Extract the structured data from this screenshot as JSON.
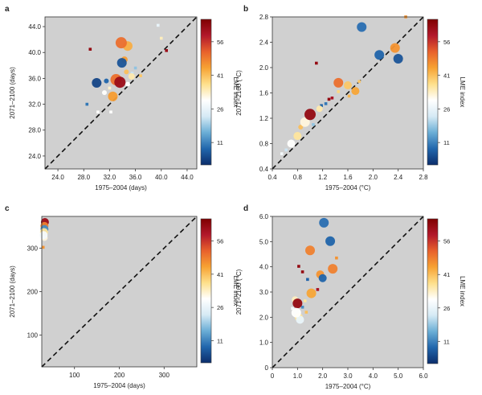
{
  "colorbar": {
    "label": "LME index",
    "ticks": [
      11,
      26,
      41,
      56
    ],
    "range": [
      1,
      66
    ],
    "colors": [
      "#0b2d6b",
      "#2166ac",
      "#6baed6",
      "#d6eaf5",
      "#ffffff",
      "#fee08b",
      "#f7a233",
      "#e8612c",
      "#b2182b",
      "#7f0000"
    ]
  },
  "chart_data": [
    {
      "type": "scatter",
      "panel": "a",
      "xlabel": "1975–2004 (days)",
      "ylabel": "2071–2100 (days)",
      "xlim": [
        22,
        45.5
      ],
      "ylim": [
        22,
        45.5
      ],
      "xticks": [
        "24.0",
        "28.0",
        "32.0",
        "36.0",
        "40.0",
        "44.0"
      ],
      "yticks": [
        "24.0",
        "28.0",
        "32.0",
        "36.0",
        "40.0",
        "44.0"
      ],
      "diagonal": true,
      "points": [
        {
          "x": 30.0,
          "y": 35.3,
          "lme": 4,
          "size": 6
        },
        {
          "x": 31.5,
          "y": 35.6,
          "lme": 8,
          "size": 3
        },
        {
          "x": 32.5,
          "y": 33.2,
          "lme": 45,
          "size": 6
        },
        {
          "x": 33.0,
          "y": 35.8,
          "lme": 50,
          "size": 7
        },
        {
          "x": 33.6,
          "y": 35.4,
          "lme": 62,
          "size": 7
        },
        {
          "x": 33.2,
          "y": 35.9,
          "lme": 40,
          "size": 5
        },
        {
          "x": 33.8,
          "y": 41.5,
          "lme": 50,
          "size": 7
        },
        {
          "x": 34.8,
          "y": 41.0,
          "lme": 43,
          "size": 6
        },
        {
          "x": 33.9,
          "y": 38.4,
          "lme": 6,
          "size": 6
        },
        {
          "x": 34.3,
          "y": 38.9,
          "lme": 45,
          "size": 4
        },
        {
          "x": 34.6,
          "y": 37.0,
          "lme": 41,
          "size": 3
        },
        {
          "x": 35.4,
          "y": 36.3,
          "lme": 35,
          "size": 4
        },
        {
          "x": 34.8,
          "y": 35.1,
          "lme": 30,
          "size": 3
        },
        {
          "x": 31.2,
          "y": 33.8,
          "lme": 30,
          "size": 3
        },
        {
          "x": 30.5,
          "y": 35.6,
          "lme": 28,
          "size": 2
        },
        {
          "x": 32.0,
          "y": 34.5,
          "lme": 33,
          "size": 2
        },
        {
          "x": 32.2,
          "y": 30.8,
          "lme": 30,
          "size": 2
        },
        {
          "x": 30.2,
          "y": 30.8,
          "lme": 30,
          "size": 2
        },
        {
          "x": 29.0,
          "y": 40.5,
          "lme": 63,
          "size": 2
        },
        {
          "x": 28.5,
          "y": 32.0,
          "lme": 10,
          "size": 2
        },
        {
          "x": 36.0,
          "y": 37.6,
          "lme": 18,
          "size": 2
        },
        {
          "x": 36.8,
          "y": 36.4,
          "lme": 40,
          "size": 2
        },
        {
          "x": 35.5,
          "y": 36.8,
          "lme": 22,
          "size": 2
        },
        {
          "x": 40.8,
          "y": 40.3,
          "lme": 62,
          "size": 2
        },
        {
          "x": 39.5,
          "y": 44.2,
          "lme": 26,
          "size": 2
        },
        {
          "x": 40.0,
          "y": 42.2,
          "lme": 34,
          "size": 2
        }
      ]
    },
    {
      "type": "scatter",
      "panel": "b",
      "xlabel": "1975–2004 (°C)",
      "ylabel": "2071–2100 (°C)",
      "xlim": [
        0.4,
        2.8
      ],
      "ylim": [
        0.4,
        2.8
      ],
      "xticks": [
        "0.4",
        "0.8",
        "1.2",
        "1.6",
        "2.0",
        "2.4",
        "2.8"
      ],
      "yticks": [
        "0.4",
        "0.8",
        "1.2",
        "1.6",
        "2.0",
        "2.4",
        "2.8"
      ],
      "diagonal": true,
      "points": [
        {
          "x": 1.82,
          "y": 2.64,
          "lme": 9,
          "size": 6
        },
        {
          "x": 2.1,
          "y": 2.2,
          "lme": 8,
          "size": 6
        },
        {
          "x": 2.4,
          "y": 2.14,
          "lme": 6,
          "size": 6
        },
        {
          "x": 2.35,
          "y": 2.31,
          "lme": 46,
          "size": 6
        },
        {
          "x": 2.52,
          "y": 2.8,
          "lme": 46,
          "size": 2
        },
        {
          "x": 1.45,
          "y": 1.76,
          "lme": 50,
          "size": 6
        },
        {
          "x": 1.6,
          "y": 1.72,
          "lme": 40,
          "size": 5
        },
        {
          "x": 1.72,
          "y": 1.63,
          "lme": 44,
          "size": 5
        },
        {
          "x": 1.78,
          "y": 1.78,
          "lme": 40,
          "size": 2
        },
        {
          "x": 1.1,
          "y": 2.07,
          "lme": 63,
          "size": 2
        },
        {
          "x": 1.0,
          "y": 1.26,
          "lme": 63,
          "size": 7
        },
        {
          "x": 0.92,
          "y": 1.14,
          "lme": 32,
          "size": 6
        },
        {
          "x": 0.8,
          "y": 0.92,
          "lme": 36,
          "size": 5
        },
        {
          "x": 0.7,
          "y": 0.8,
          "lme": 30,
          "size": 5
        },
        {
          "x": 1.15,
          "y": 1.35,
          "lme": 35,
          "size": 4
        },
        {
          "x": 1.25,
          "y": 1.43,
          "lme": 10,
          "size": 2
        },
        {
          "x": 1.3,
          "y": 1.5,
          "lme": 63,
          "size": 2
        },
        {
          "x": 1.18,
          "y": 1.4,
          "lme": 8,
          "size": 2
        },
        {
          "x": 1.35,
          "y": 1.52,
          "lme": 60,
          "size": 2
        },
        {
          "x": 1.05,
          "y": 1.1,
          "lme": 18,
          "size": 2
        },
        {
          "x": 0.62,
          "y": 0.7,
          "lme": 22,
          "size": 2
        },
        {
          "x": 0.55,
          "y": 0.64,
          "lme": 28,
          "size": 2
        },
        {
          "x": 0.85,
          "y": 1.06,
          "lme": 41,
          "size": 3
        },
        {
          "x": 1.45,
          "y": 1.62,
          "lme": 38,
          "size": 2
        },
        {
          "x": 1.62,
          "y": 1.55,
          "lme": 42,
          "size": 2
        }
      ]
    },
    {
      "type": "scatter",
      "panel": "c",
      "xlabel": "1975–2004 (days)",
      "ylabel": "2071–2100 (days)",
      "xlim": [
        27,
        373
      ],
      "ylim": [
        27,
        373
      ],
      "xticks": [
        "100",
        "200",
        "300"
      ],
      "yticks": [
        "100",
        "200",
        "300"
      ],
      "diagonal": true,
      "points": [
        {
          "x": 34,
          "y": 360,
          "lme": 62,
          "size": 5
        },
        {
          "x": 33,
          "y": 351,
          "lme": 48,
          "size": 5
        },
        {
          "x": 33,
          "y": 344,
          "lme": 12,
          "size": 5
        },
        {
          "x": 32,
          "y": 337,
          "lme": 36,
          "size": 5
        },
        {
          "x": 31,
          "y": 330,
          "lme": 28,
          "size": 5
        },
        {
          "x": 33,
          "y": 324,
          "lme": 32,
          "size": 4
        },
        {
          "x": 30,
          "y": 302,
          "lme": 46,
          "size": 2
        }
      ]
    },
    {
      "type": "scatter",
      "panel": "d",
      "xlabel": "1975–2004 (°C)",
      "ylabel": "2071–2100 (°C)",
      "xlim": [
        0,
        6
      ],
      "ylim": [
        0,
        6
      ],
      "xticks": [
        "0",
        "1.0",
        "2.0",
        "3.0",
        "4.0",
        "5.0",
        "6.0"
      ],
      "yticks": [
        "0",
        "1.0",
        "2.0",
        "3.0",
        "4.0",
        "5.0",
        "6.0"
      ],
      "diagonal": true,
      "points": [
        {
          "x": 2.05,
          "y": 5.75,
          "lme": 9,
          "size": 6
        },
        {
          "x": 2.3,
          "y": 5.02,
          "lme": 8,
          "size": 6
        },
        {
          "x": 1.5,
          "y": 4.65,
          "lme": 48,
          "size": 6
        },
        {
          "x": 2.4,
          "y": 3.92,
          "lme": 48,
          "size": 6
        },
        {
          "x": 1.9,
          "y": 3.7,
          "lme": 46,
          "size": 5
        },
        {
          "x": 2.0,
          "y": 3.55,
          "lme": 8,
          "size": 5
        },
        {
          "x": 1.55,
          "y": 2.95,
          "lme": 44,
          "size": 6
        },
        {
          "x": 1.0,
          "y": 2.55,
          "lme": 63,
          "size": 6
        },
        {
          "x": 0.95,
          "y": 2.18,
          "lme": 30,
          "size": 6
        },
        {
          "x": 1.05,
          "y": 2.0,
          "lme": 36,
          "size": 5
        },
        {
          "x": 1.1,
          "y": 1.9,
          "lme": 26,
          "size": 5
        },
        {
          "x": 0.9,
          "y": 2.7,
          "lme": 34,
          "size": 4
        },
        {
          "x": 1.2,
          "y": 3.8,
          "lme": 63,
          "size": 2
        },
        {
          "x": 1.05,
          "y": 4.02,
          "lme": 63,
          "size": 2
        },
        {
          "x": 1.4,
          "y": 3.5,
          "lme": 8,
          "size": 2
        },
        {
          "x": 0.8,
          "y": 2.35,
          "lme": 28,
          "size": 2
        },
        {
          "x": 1.2,
          "y": 2.4,
          "lme": 12,
          "size": 2
        },
        {
          "x": 1.3,
          "y": 2.65,
          "lme": 36,
          "size": 2
        },
        {
          "x": 1.8,
          "y": 3.1,
          "lme": 60,
          "size": 2
        },
        {
          "x": 2.55,
          "y": 4.35,
          "lme": 46,
          "size": 2
        },
        {
          "x": 1.35,
          "y": 2.2,
          "lme": 41,
          "size": 2
        }
      ]
    }
  ]
}
